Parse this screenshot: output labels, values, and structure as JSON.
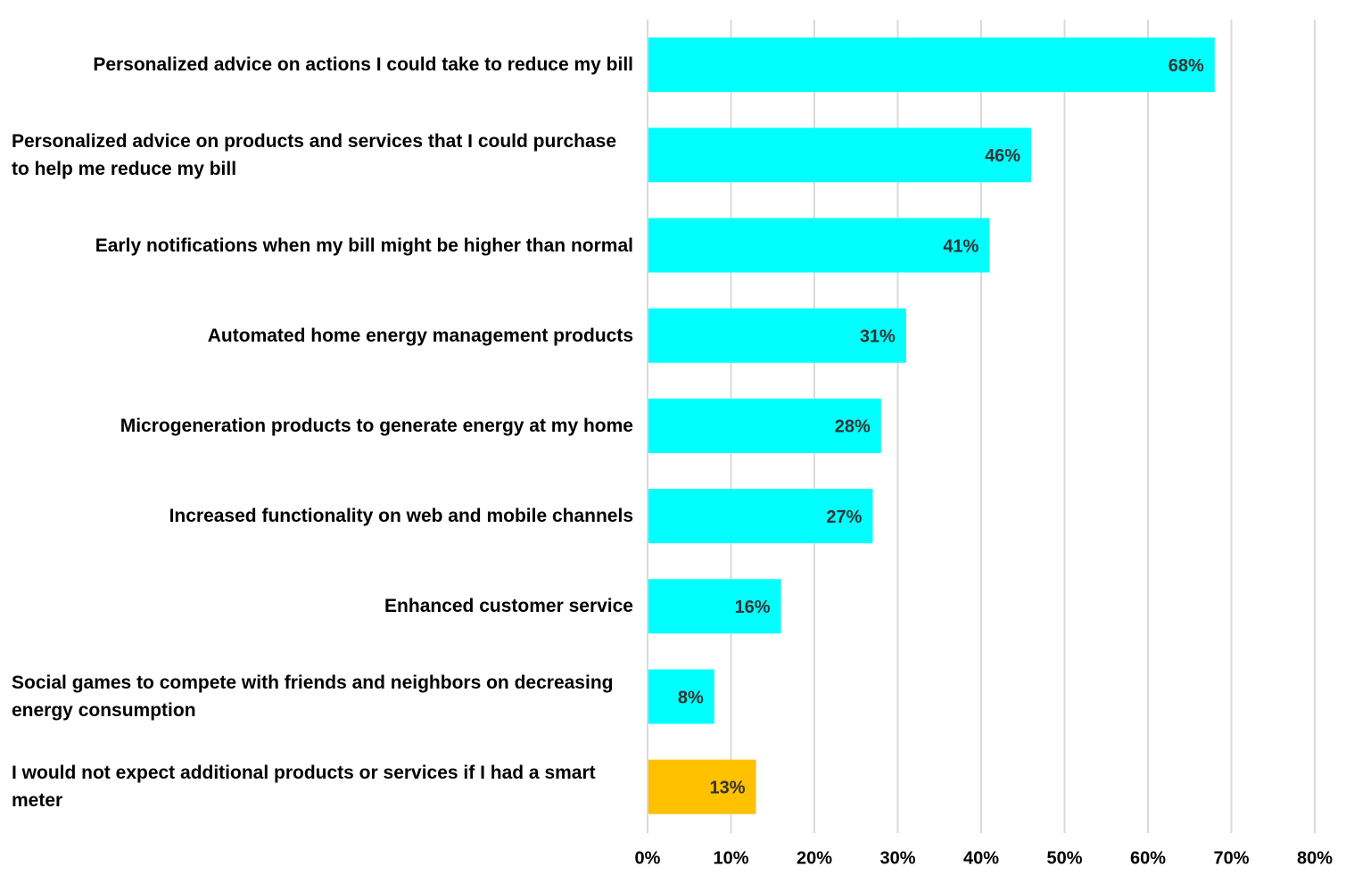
{
  "chart_data": {
    "type": "barh",
    "categories": [
      "Personalized advice on actions I could take to reduce my bill",
      "Personalized advice on products and services that  I could purchase to help me reduce my bill",
      "Early notifications when my bill might be higher than normal",
      "Automated home energy management products",
      "Microgeneration products to generate energy at my home",
      "Increased functionality on web and mobile channels",
      "Enhanced customer service",
      "Social games to compete with friends and neighbors on decreasing energy consumption",
      "I would not expect additional products or services if I had a smart meter"
    ],
    "values": [
      68,
      46,
      41,
      31,
      28,
      27,
      16,
      8,
      13
    ],
    "value_labels": [
      "68%",
      "46%",
      "41%",
      "31%",
      "28%",
      "27%",
      "16%",
      "8%",
      "13%"
    ],
    "colors": [
      "#00ffff",
      "#00ffff",
      "#00ffff",
      "#00ffff",
      "#00ffff",
      "#00ffff",
      "#00ffff",
      "#00ffff",
      "#ffc000"
    ],
    "xlim": [
      0,
      80
    ],
    "xticks": [
      {
        "value": 0,
        "label": "0%"
      },
      {
        "value": 10,
        "label": "10%"
      },
      {
        "value": 20,
        "label": "20%"
      },
      {
        "value": 30,
        "label": "30%"
      },
      {
        "value": 40,
        "label": "40%"
      },
      {
        "value": 50,
        "label": "50%"
      },
      {
        "value": 60,
        "label": "60%"
      },
      {
        "value": 70,
        "label": "70%"
      },
      {
        "value": 80,
        "label": "80%"
      }
    ],
    "grid": true
  }
}
